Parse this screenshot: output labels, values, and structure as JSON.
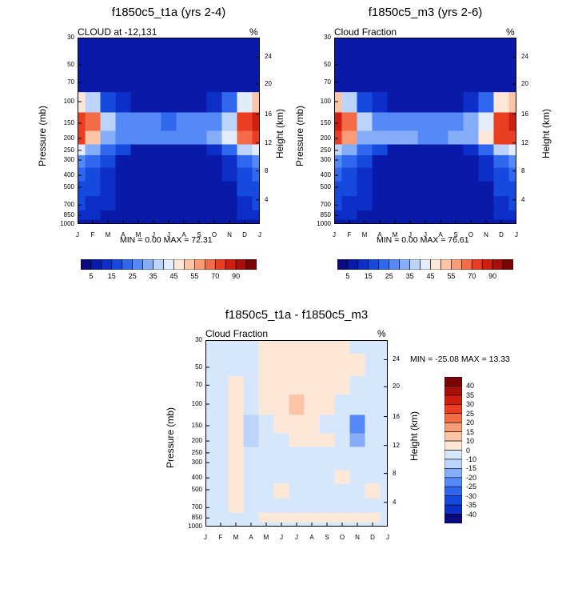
{
  "chart_data": [
    {
      "type": "heatmap",
      "title": "f1850c5_t1a (yrs 2-4)",
      "left_label": "CLOUD at -12,131",
      "right_label": "%",
      "ylabel": "Pressure (mb)",
      "ylabel_right": "Height (km)",
      "min_max": "MIN =   0.00 MAX =  72.31",
      "x_ticks": [
        "J",
        "F",
        "M",
        "A",
        "M",
        "J",
        "J",
        "A",
        "S",
        "O",
        "N",
        "D",
        "J"
      ],
      "y_ticks": [
        30,
        50,
        70,
        100,
        150,
        200,
        250,
        300,
        400,
        500,
        700,
        850,
        1000
      ],
      "y_ticks_right": [
        24,
        20,
        16,
        12,
        8,
        4
      ],
      "colorbar_ticks": [
        "5",
        "15",
        "25",
        "35",
        "45",
        "55",
        "70",
        "90"
      ],
      "colors": [
        "#0c0a80",
        "#0a1aa8",
        "#0d2fc7",
        "#1649dd",
        "#2f68ef",
        "#5589f7",
        "#86aef8",
        "#bcd3fa",
        "#e2ecfb",
        "#fde8d8",
        "#fbc5a6",
        "#f89c78",
        "#f46b48",
        "#ea3e22",
        "#cf1e10",
        "#a80e0a",
        "#7a0505"
      ],
      "months": [
        "J",
        "F",
        "M",
        "A",
        "M",
        "J",
        "J",
        "A",
        "S",
        "O",
        "N",
        "D",
        "J"
      ],
      "levels": [
        30,
        50,
        70,
        100,
        150,
        200,
        250,
        300,
        400,
        500,
        700,
        850,
        1000
      ],
      "grid": [
        [
          0,
          0,
          0,
          0,
          0,
          0,
          0,
          0,
          0,
          0,
          0,
          0,
          0
        ],
        [
          0,
          0,
          0,
          0,
          0,
          0,
          0,
          0,
          0,
          0,
          0,
          0,
          0
        ],
        [
          3,
          2,
          1,
          0,
          0,
          0,
          0,
          0,
          0,
          0,
          1,
          2,
          3
        ],
        [
          42,
          30,
          12,
          6,
          4,
          3,
          3,
          3,
          4,
          6,
          15,
          38,
          45
        ],
        [
          68,
          55,
          30,
          22,
          20,
          20,
          19,
          20,
          21,
          24,
          34,
          62,
          70
        ],
        [
          60,
          48,
          28,
          22,
          24,
          22,
          20,
          22,
          24,
          26,
          36,
          56,
          62
        ],
        [
          35,
          28,
          18,
          10,
          4,
          3,
          3,
          3,
          4,
          6,
          18,
          32,
          36
        ],
        [
          22,
          18,
          12,
          4,
          2,
          1,
          1,
          1,
          2,
          3,
          8,
          18,
          22
        ],
        [
          16,
          14,
          9,
          2,
          1,
          1,
          1,
          1,
          1,
          2,
          5,
          14,
          16
        ],
        [
          14,
          11,
          7,
          2,
          1,
          1,
          1,
          1,
          1,
          2,
          4,
          12,
          14
        ],
        [
          10,
          8,
          5,
          1,
          1,
          1,
          1,
          1,
          1,
          1,
          3,
          8,
          10
        ],
        [
          6,
          5,
          4,
          2,
          1,
          1,
          1,
          1,
          1,
          2,
          3,
          5,
          6
        ],
        [
          3,
          3,
          2,
          2,
          2,
          2,
          2,
          2,
          2,
          2,
          2,
          3,
          3
        ]
      ]
    },
    {
      "type": "heatmap",
      "title": "f1850c5_m3 (yrs 2-6)",
      "left_label": "Cloud Fraction",
      "right_label": "%",
      "ylabel": "Pressure (mb)",
      "ylabel_right": "Height (km)",
      "min_max": "MIN =   0.00 MAX =  76.61",
      "x_ticks": [
        "J",
        "F",
        "M",
        "A",
        "M",
        "J",
        "J",
        "A",
        "S",
        "O",
        "N",
        "D",
        "J"
      ],
      "y_ticks": [
        30,
        50,
        70,
        100,
        150,
        200,
        250,
        300,
        400,
        500,
        700,
        850,
        1000
      ],
      "y_ticks_right": [
        24,
        20,
        16,
        12,
        8,
        4
      ],
      "colorbar_ticks": [
        "5",
        "15",
        "25",
        "35",
        "45",
        "55",
        "70",
        "90"
      ],
      "colors": [
        "#0c0a80",
        "#0a1aa8",
        "#0d2fc7",
        "#1649dd",
        "#2f68ef",
        "#5589f7",
        "#86aef8",
        "#bcd3fa",
        "#e2ecfb",
        "#fde8d8",
        "#fbc5a6",
        "#f89c78",
        "#f46b48",
        "#ea3e22",
        "#cf1e10",
        "#a80e0a",
        "#7a0505"
      ],
      "months": [
        "J",
        "F",
        "M",
        "A",
        "M",
        "J",
        "J",
        "A",
        "S",
        "O",
        "N",
        "D",
        "J"
      ],
      "levels": [
        30,
        50,
        70,
        100,
        150,
        200,
        250,
        300,
        400,
        500,
        700,
        850,
        1000
      ],
      "grid": [
        [
          0,
          0,
          0,
          0,
          0,
          0,
          0,
          0,
          0,
          0,
          0,
          0,
          0
        ],
        [
          0,
          0,
          0,
          0,
          0,
          0,
          0,
          0,
          0,
          0,
          0,
          0,
          0
        ],
        [
          3,
          2,
          1,
          0,
          0,
          0,
          0,
          0,
          0,
          0,
          1,
          2,
          3
        ],
        [
          46,
          34,
          14,
          6,
          4,
          3,
          3,
          3,
          4,
          7,
          18,
          42,
          48
        ],
        [
          72,
          58,
          32,
          24,
          22,
          22,
          20,
          21,
          22,
          26,
          38,
          66,
          74
        ],
        [
          62,
          50,
          28,
          26,
          28,
          26,
          22,
          24,
          26,
          28,
          40,
          60,
          64
        ],
        [
          34,
          26,
          16,
          10,
          4,
          3,
          3,
          3,
          4,
          6,
          18,
          30,
          35
        ],
        [
          22,
          18,
          12,
          4,
          2,
          1,
          1,
          1,
          2,
          3,
          8,
          17,
          22
        ],
        [
          16,
          14,
          9,
          2,
          1,
          1,
          1,
          1,
          1,
          2,
          5,
          14,
          16
        ],
        [
          14,
          11,
          7,
          2,
          1,
          1,
          1,
          1,
          1,
          2,
          4,
          12,
          14
        ],
        [
          10,
          8,
          5,
          1,
          1,
          1,
          1,
          1,
          1,
          1,
          3,
          8,
          10
        ],
        [
          6,
          5,
          4,
          2,
          1,
          1,
          1,
          1,
          1,
          2,
          3,
          5,
          6
        ],
        [
          3,
          3,
          2,
          2,
          2,
          2,
          2,
          2,
          2,
          2,
          2,
          3,
          3
        ]
      ]
    },
    {
      "type": "heatmap",
      "title": "f1850c5_t1a - f1850c5_m3",
      "left_label": "Cloud Fraction",
      "right_label": "%",
      "ylabel": "Pressure (mb)",
      "ylabel_right": "Height (km)",
      "min_max": "MIN = -25.08 MAX =  13.33",
      "x_ticks": [
        "J",
        "F",
        "M",
        "A",
        "M",
        "J",
        "J",
        "A",
        "S",
        "O",
        "N",
        "D",
        "J"
      ],
      "y_ticks": [
        30,
        50,
        70,
        100,
        150,
        200,
        250,
        300,
        400,
        500,
        700,
        850,
        1000
      ],
      "y_ticks_right": [
        24,
        20,
        16,
        12,
        8,
        4
      ],
      "colorbar_ticks": [
        "40",
        "35",
        "30",
        "25",
        "20",
        "15",
        "10",
        "0",
        "-10",
        "-15",
        "-20",
        "-25",
        "-30",
        "-35",
        "-40"
      ],
      "colors": [
        "#0c0a80",
        "#0d2fc7",
        "#1649dd",
        "#2f68ef",
        "#5589f7",
        "#86aef8",
        "#bcd3fa",
        "#d6e7fb",
        "#fde8d8",
        "#fbc5a6",
        "#f89c78",
        "#f46b48",
        "#ea3e22",
        "#cf1e10",
        "#a80e0a",
        "#7a0505"
      ],
      "months": [
        "J",
        "F",
        "M",
        "A",
        "M",
        "J",
        "J",
        "A",
        "S",
        "O",
        "N",
        "D",
        "J"
      ],
      "levels": [
        30,
        50,
        70,
        100,
        150,
        200,
        250,
        300,
        400,
        500,
        700,
        850,
        1000
      ],
      "grid": [
        [
          -1,
          -1,
          -1,
          -1,
          1,
          1,
          1,
          1,
          1,
          1,
          -1,
          -1,
          -1
        ],
        [
          -1,
          -1,
          -1,
          -1,
          1,
          1,
          1,
          1,
          1,
          1,
          1,
          -1,
          -1
        ],
        [
          -1,
          -1,
          1,
          -1,
          1,
          1,
          1,
          1,
          1,
          1,
          -1,
          -1,
          -1
        ],
        [
          -1,
          -1,
          1,
          -1,
          1,
          1,
          12,
          1,
          1,
          -1,
          -1,
          -1,
          -1
        ],
        [
          -1,
          -1,
          1,
          -15,
          -1,
          1,
          1,
          1,
          -1,
          -1,
          -22,
          -1,
          -1
        ],
        [
          -1,
          -1,
          1,
          -12,
          -1,
          -1,
          1,
          1,
          1,
          -1,
          -18,
          -1,
          -1
        ],
        [
          -1,
          -1,
          1,
          -1,
          -1,
          -1,
          -1,
          -1,
          -1,
          -1,
          -1,
          -1,
          -1
        ],
        [
          -1,
          -1,
          1,
          -1,
          -1,
          -1,
          -1,
          -1,
          -1,
          -1,
          -1,
          -1,
          -1
        ],
        [
          -1,
          -1,
          1,
          -1,
          -1,
          -1,
          -1,
          -1,
          -1,
          1,
          -1,
          -1,
          -1
        ],
        [
          -1,
          -1,
          1,
          -1,
          -1,
          1,
          -1,
          -1,
          -1,
          -1,
          -1,
          1,
          -1
        ],
        [
          -1,
          -1,
          1,
          -1,
          -1,
          -1,
          -1,
          -1,
          -1,
          -1,
          -1,
          -1,
          -1
        ],
        [
          -1,
          -1,
          -1,
          -1,
          1,
          1,
          1,
          1,
          1,
          1,
          1,
          1,
          -1
        ],
        [
          -1,
          -1,
          -1,
          -1,
          -1,
          -1,
          -1,
          -1,
          -1,
          -1,
          -1,
          -1,
          -1
        ]
      ]
    }
  ]
}
